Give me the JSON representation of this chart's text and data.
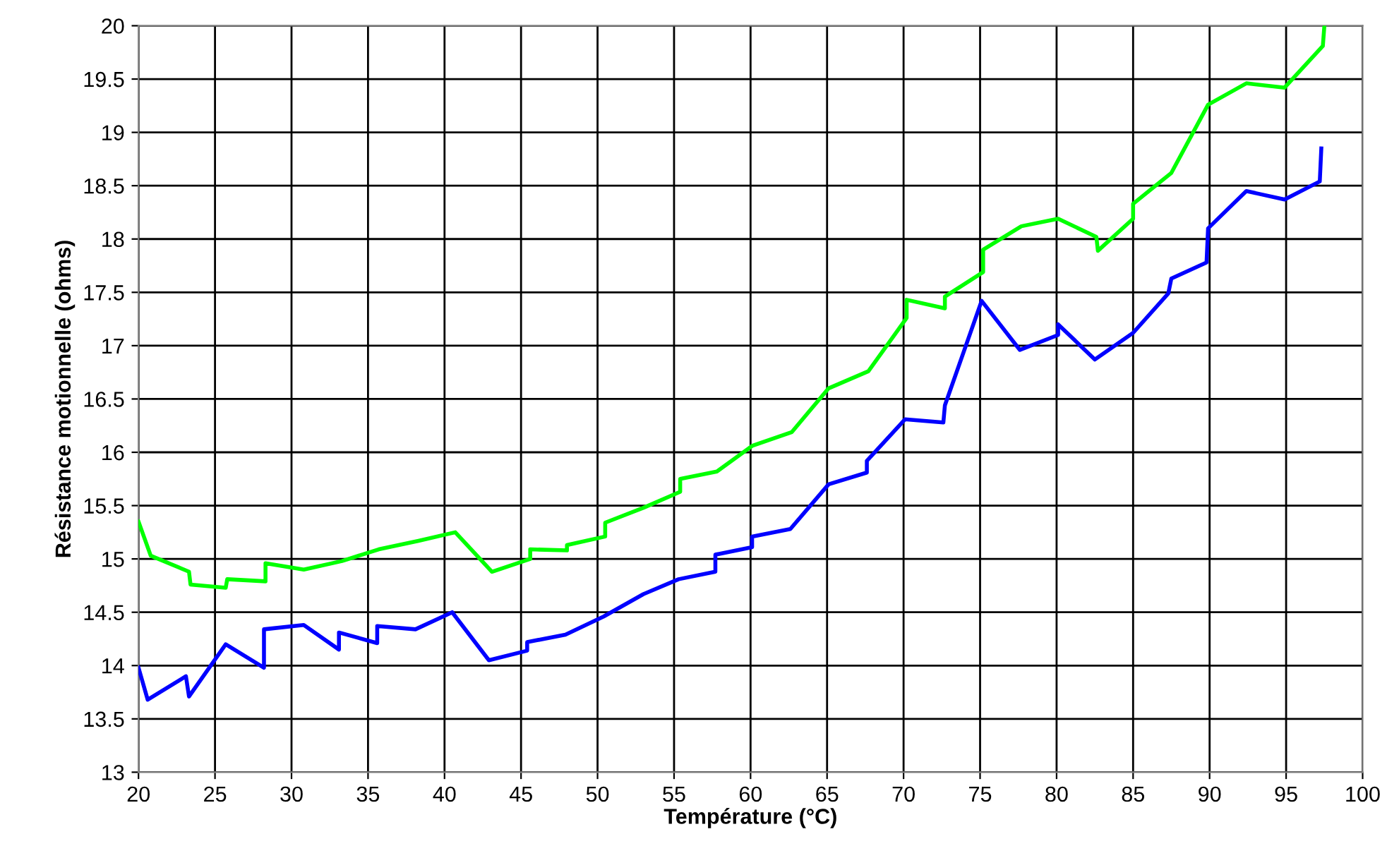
{
  "chart_data": {
    "type": "line",
    "xlabel": "Température (°C)",
    "ylabel": "Résistance motionnelle (ohms)",
    "xlim": [
      20,
      100
    ],
    "xticks": [
      20,
      25,
      30,
      35,
      40,
      45,
      50,
      55,
      60,
      65,
      70,
      75,
      80,
      85,
      90,
      95,
      100
    ],
    "ylim": [
      13,
      20
    ],
    "yticks": [
      13,
      13.5,
      14,
      14.5,
      15,
      15.5,
      16,
      16.5,
      17,
      17.5,
      18,
      18.5,
      19,
      19.5,
      20
    ],
    "grid": true,
    "marker": "none",
    "line_style": "solid",
    "series": [
      {
        "color": "#00ff00",
        "x": [
          20,
          20.8,
          23.3,
          23.4,
          25.7,
          25.8,
          28.3,
          28.3,
          30.8,
          33.3,
          35.7,
          38.3,
          40.7,
          43.1,
          45.6,
          45.6,
          48.0,
          48.0,
          50.5,
          50.5,
          53.0,
          55.4,
          55.4,
          57.8,
          60.1,
          62.7,
          65.1,
          67.7,
          70.2,
          70.2,
          72.7,
          72.7,
          75.2,
          75.2,
          77.7,
          80.1,
          82.6,
          82.7,
          85.0,
          85.0,
          87.5,
          89.9,
          92.4,
          94.9,
          97.4,
          97.5
        ],
        "values": [
          15.35,
          15.03,
          14.88,
          14.76,
          14.73,
          14.81,
          14.79,
          14.96,
          14.9,
          14.98,
          15.09,
          15.17,
          15.25,
          14.88,
          15.0,
          15.09,
          15.08,
          15.13,
          15.21,
          15.34,
          15.48,
          15.63,
          15.75,
          15.82,
          16.06,
          16.19,
          16.6,
          16.76,
          17.26,
          17.43,
          17.35,
          17.46,
          17.69,
          17.9,
          18.12,
          18.19,
          18.02,
          17.89,
          18.19,
          18.33,
          18.62,
          19.26,
          19.46,
          19.42,
          19.81,
          20.0
        ]
      },
      {
        "color": "#0000ff",
        "x": [
          20,
          20.6,
          23.1,
          23.3,
          25.7,
          28.2,
          28.2,
          30.8,
          33.1,
          33.1,
          35.6,
          35.6,
          38.1,
          40.5,
          42.9,
          45.4,
          45.4,
          47.9,
          50.4,
          53.0,
          55.3,
          57.7,
          57.7,
          60.1,
          60.1,
          62.6,
          65.1,
          67.6,
          67.6,
          70.1,
          72.6,
          72.7,
          75.1,
          77.6,
          80.1,
          80.1,
          82.5,
          85.0,
          87.3,
          87.5,
          89.8,
          89.9,
          92.4,
          94.9,
          97.2,
          97.3
        ],
        "values": [
          13.98,
          13.68,
          13.9,
          13.71,
          14.2,
          13.98,
          14.34,
          14.38,
          14.15,
          14.31,
          14.21,
          14.37,
          14.34,
          14.5,
          14.05,
          14.14,
          14.22,
          14.29,
          14.46,
          14.67,
          14.81,
          14.88,
          15.04,
          15.11,
          15.21,
          15.28,
          15.7,
          15.81,
          15.92,
          16.31,
          16.28,
          16.44,
          17.42,
          16.96,
          17.1,
          17.2,
          16.87,
          17.12,
          17.49,
          17.63,
          17.78,
          18.1,
          18.45,
          18.37,
          18.54,
          18.85
        ]
      }
    ]
  }
}
